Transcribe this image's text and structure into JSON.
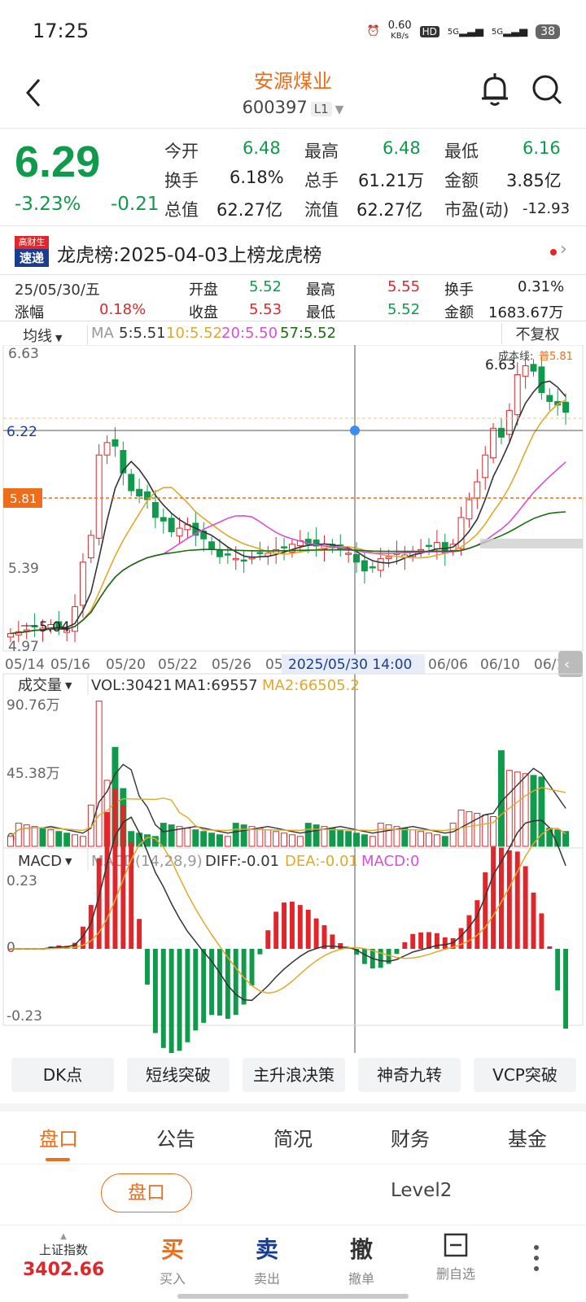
{
  "status_bar": {
    "time": "17:25",
    "net_speed_value": "0.60",
    "net_speed_unit": "KB/s",
    "hd": "HD",
    "sig1": "5G",
    "sig2": "5G",
    "battery": "38"
  },
  "header": {
    "stock_name": "安源煤业",
    "stock_code": "600397",
    "level_badge": "L1"
  },
  "quote": {
    "price": "6.29",
    "change_pct": "-3.23%",
    "change": "-0.21",
    "cells": [
      {
        "label": "今开",
        "value": "6.48",
        "color": "green"
      },
      {
        "label": "最高",
        "value": "6.48",
        "color": "green"
      },
      {
        "label": "最低",
        "value": "6.16",
        "color": "green"
      },
      {
        "label": "换手",
        "value": "6.18%",
        "color": "black"
      },
      {
        "label": "总手",
        "value": "61.21万",
        "color": "black"
      },
      {
        "label": "金额",
        "value": "3.85亿",
        "color": "black"
      },
      {
        "label": "总值",
        "value": "62.27亿",
        "color": "black"
      },
      {
        "label": "流值",
        "value": "62.27亿",
        "color": "black"
      },
      {
        "label": "市盈(动)",
        "value": "-12.93",
        "color": "black"
      }
    ]
  },
  "news": {
    "logo_top": "高财生",
    "logo_bottom": "速递",
    "text": "龙虎榜:2025-04-03上榜龙虎榜"
  },
  "day_info": {
    "date": "25/05/30/五",
    "cells": [
      {
        "label": "开盘",
        "value": "5.52",
        "color": "green"
      },
      {
        "label": "最高",
        "value": "5.55",
        "color": "red"
      },
      {
        "label": "换手",
        "value": "0.31%",
        "color": "black"
      },
      {
        "label": "涨幅",
        "value": "0.18%",
        "color": "red"
      },
      {
        "label": "收盘",
        "value": "5.53",
        "color": "red"
      },
      {
        "label": "最低",
        "value": "5.52",
        "color": "green"
      },
      {
        "label": "金额",
        "value": "1683.67万",
        "color": "black"
      }
    ]
  },
  "kline_toolbar": {
    "indicator": "均线",
    "ma_label": "MA",
    "ma5": "5:5.51",
    "ma10": "10:5.52",
    "ma20": "20:5.50",
    "ma57": "57:5.52",
    "adjust": "不复权"
  },
  "kline_axis": {
    "y_ticks": [
      "6.63",
      "6.22",
      "5.81",
      "5.39",
      "4.97"
    ],
    "cost_line_label": "成本线:",
    "cost_line_value": "普5.81",
    "high_mark": "6.63",
    "low_mark": "5.04",
    "x_ticks": [
      "05/14",
      "05/16",
      "05/20",
      "05/22",
      "05/26",
      "05",
      "06/06",
      "06/10",
      "06/1"
    ],
    "cursor_time": "2025/05/30 14:00"
  },
  "volume": {
    "indicator": "成交量",
    "vol": "VOL:30421",
    "ma1": "MA1:69557",
    "ma2": "MA2:66505.2",
    "y_ticks": [
      "90.76万",
      "45.38万",
      "0"
    ]
  },
  "macd": {
    "indicator": "MACD",
    "params": "MACD(14,28,9)",
    "diff": "DIFF:-0.01",
    "dea": "DEA:-0.01",
    "macd": "MACD:0",
    "y_ticks": [
      "0.23",
      "0",
      "-0.23"
    ]
  },
  "feature_buttons": [
    "DK点",
    "短线突破",
    "主升浪决策",
    "神奇九转",
    "VCP突破"
  ],
  "tabs": [
    "盘口",
    "公告",
    "简况",
    "财务",
    "基金"
  ],
  "sub_tabs": [
    "盘口",
    "Level2"
  ],
  "bottom_bar": {
    "index_name": "上证指数",
    "index_value": "3402.66",
    "buy": "买",
    "buy_label": "买入",
    "sell": "卖",
    "sell_label": "卖出",
    "cancel": "撤",
    "cancel_label": "撤单",
    "delete_label": "删自选"
  },
  "colors": {
    "up": "#e0262b",
    "down": "#109a4b",
    "accent": "#ee6d1b",
    "ma5": "#333333",
    "ma10": "#e0a92a",
    "ma20": "#d94fd6",
    "ma57": "#1d6b14"
  }
}
